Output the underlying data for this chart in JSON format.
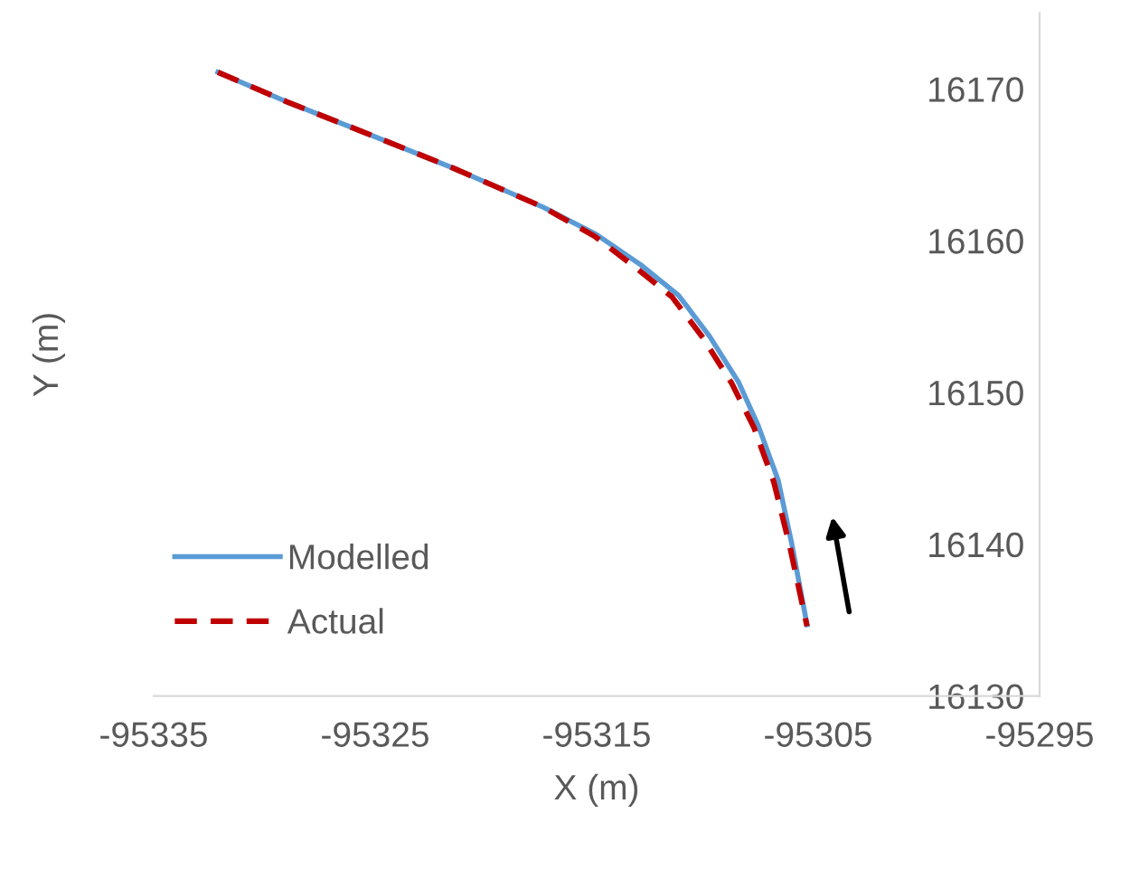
{
  "chart_data": {
    "type": "line",
    "xlabel": "X (m)",
    "ylabel": "Y (m)",
    "xlim": [
      -95335,
      -95295
    ],
    "xticks": [
      -95335,
      -95325,
      -95315,
      -95305,
      -95295
    ],
    "ylim": [
      16130,
      16175
    ],
    "yticks": [
      16130,
      16140,
      16150,
      16160,
      16170
    ],
    "grid": false,
    "legend": "bottom left",
    "marker": "none",
    "series": [
      {
        "name": "Modelled",
        "color": "#5b9bd5",
        "line_style": "solid",
        "x": [
          -95332.1,
          -95328.9,
          -95325.6,
          -95321.5,
          -95317.4,
          -95315.0,
          -95313.0,
          -95311.3,
          -95309.9,
          -95308.6,
          -95307.7,
          -95306.8,
          -95306.2,
          -95305.5
        ],
        "values": [
          16171.1,
          16169.1,
          16167.2,
          16164.8,
          16162.2,
          16160.4,
          16158.4,
          16156.4,
          16153.7,
          16150.7,
          16147.8,
          16144.2,
          16140.1,
          16134.7
        ]
      },
      {
        "name": "Actual",
        "color": "#c00000",
        "line_style": "dashed",
        "x": [
          -95332.1,
          -95328.9,
          -95325.6,
          -95321.5,
          -95317.4,
          -95315.1,
          -95313.3,
          -95311.6,
          -95310.2,
          -95308.9,
          -95307.9,
          -95307.0,
          -95306.3,
          -95305.5
        ],
        "values": [
          16171.1,
          16169.1,
          16167.2,
          16164.8,
          16162.2,
          16160.3,
          16158.3,
          16156.3,
          16153.6,
          16150.6,
          16147.7,
          16144.1,
          16140.0,
          16134.6
        ]
      }
    ]
  }
}
